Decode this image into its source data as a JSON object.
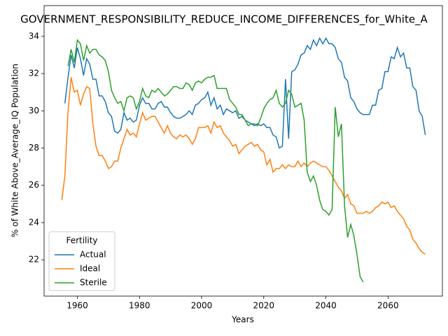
{
  "chart_data": {
    "type": "line",
    "title": "GOVERNMENT_RESPONSIBILITY_REDUCE_INCOME_DIFFERENCES_for_White_A",
    "xlabel": "Years",
    "ylabel": "% of White Above_Average_IQ Population",
    "x": [
      1955,
      1956,
      1957,
      1958,
      1959,
      1960,
      1961,
      1962,
      1963,
      1964,
      1965,
      1966,
      1967,
      1968,
      1969,
      1970,
      1971,
      1972,
      1973,
      1974,
      1975,
      1976,
      1977,
      1978,
      1979,
      1980,
      1981,
      1982,
      1983,
      1984,
      1985,
      1986,
      1987,
      1988,
      1989,
      1990,
      1991,
      1992,
      1993,
      1994,
      1995,
      1996,
      1997,
      1998,
      1999,
      2000,
      2001,
      2002,
      2003,
      2004,
      2005,
      2006,
      2007,
      2008,
      2009,
      2010,
      2011,
      2012,
      2013,
      2014,
      2015,
      2016,
      2017,
      2018,
      2019,
      2020,
      2021,
      2022,
      2023,
      2024,
      2025,
      2026,
      2027,
      2028,
      2029,
      2030,
      2031,
      2032,
      2033,
      2034,
      2035,
      2036,
      2037,
      2038,
      2039,
      2040,
      2041,
      2042,
      2043,
      2044,
      2045,
      2046,
      2047,
      2048,
      2049,
      2050,
      2051,
      2052,
      2053,
      2054,
      2055,
      2056,
      2057,
      2058,
      2059,
      2060,
      2061,
      2062,
      2063,
      2064,
      2065,
      2066,
      2067,
      2068,
      2069,
      2070,
      2071,
      2072
    ],
    "series": [
      {
        "name": "Actual",
        "color": "#1f77b4",
        "values": [
          null,
          30.4,
          31.8,
          33.0,
          32.3,
          33.4,
          32.8,
          31.9,
          32.8,
          32.5,
          31.7,
          31.7,
          30.8,
          30.8,
          30.5,
          29.9,
          29.7,
          28.9,
          28.8,
          29.0,
          29.9,
          29.5,
          29.6,
          29.4,
          29.5,
          30.3,
          30.7,
          30.4,
          30.4,
          30.1,
          30.1,
          30.4,
          30.5,
          30.2,
          30.2,
          29.9,
          29.7,
          29.6,
          29.6,
          29.7,
          29.8,
          30.0,
          29.8,
          30.3,
          30.4,
          30.6,
          30.7,
          31.0,
          30.3,
          30.7,
          30.1,
          30.3,
          29.8,
          30.1,
          30.0,
          29.9,
          30.0,
          29.6,
          29.7,
          29.5,
          29.4,
          29.3,
          29.2,
          29.3,
          29.2,
          29.3,
          29.1,
          29.1,
          28.7,
          28.6,
          28.0,
          28.1,
          31.7,
          28.5,
          32.1,
          32.2,
          32.5,
          33.0,
          33.1,
          33.5,
          33.3,
          33.8,
          33.5,
          33.9,
          33.6,
          33.9,
          33.6,
          33.6,
          33.4,
          32.8,
          32.6,
          31.8,
          31.6,
          30.7,
          30.5,
          30.1,
          29.9,
          29.8,
          29.8,
          29.8,
          30.3,
          30.3,
          31.1,
          31.2,
          32.1,
          32.1,
          32.9,
          32.8,
          33.4,
          32.9,
          33.1,
          32.3,
          32.3,
          31.3,
          31.1,
          30.0,
          29.7,
          28.7
        ]
      },
      {
        "name": "Ideal",
        "color": "#ff7f0e",
        "values": [
          25.2,
          26.5,
          30.0,
          31.8,
          31.0,
          31.1,
          30.3,
          30.9,
          31.3,
          31.2,
          29.3,
          28.1,
          27.6,
          27.6,
          27.3,
          26.9,
          27.0,
          27.3,
          27.3,
          28.0,
          28.5,
          29.0,
          28.7,
          28.8,
          28.6,
          29.3,
          29.9,
          29.5,
          29.6,
          29.7,
          29.7,
          29.4,
          29.1,
          28.8,
          29.2,
          28.8,
          28.6,
          28.5,
          28.7,
          28.6,
          28.7,
          28.5,
          28.2,
          28.5,
          29.1,
          29.1,
          29.1,
          29.2,
          28.8,
          29.4,
          29.1,
          29.2,
          28.8,
          28.6,
          28.4,
          28.1,
          28.2,
          27.7,
          27.9,
          28.1,
          28.2,
          28.3,
          28.1,
          28.2,
          27.9,
          27.8,
          27.1,
          27.4,
          26.7,
          26.9,
          26.9,
          27.1,
          26.9,
          27.1,
          27.0,
          27.0,
          27.3,
          27.0,
          27.2,
          27.0,
          27.2,
          27.3,
          27.2,
          27.1,
          27.0,
          27.0,
          26.8,
          26.5,
          26.2,
          25.9,
          25.7,
          25.3,
          25.5,
          25.0,
          24.9,
          24.5,
          24.5,
          24.5,
          24.6,
          24.5,
          24.6,
          24.8,
          24.9,
          25.1,
          25.0,
          25.1,
          24.8,
          24.9,
          24.6,
          24.4,
          24.2,
          23.8,
          23.6,
          23.1,
          22.9,
          22.6,
          22.4,
          22.3
        ]
      },
      {
        "name": "Sterile",
        "color": "#2ca02c",
        "values": [
          null,
          null,
          32.4,
          33.3,
          32.6,
          33.8,
          33.6,
          32.7,
          33.5,
          33.1,
          33.3,
          33.3,
          33.0,
          32.9,
          32.7,
          32.1,
          31.1,
          30.7,
          30.4,
          30.5,
          30.0,
          30.7,
          30.8,
          30.7,
          30.1,
          30.5,
          31.2,
          30.8,
          30.7,
          31.1,
          31.0,
          31.2,
          31.0,
          30.8,
          30.9,
          31.1,
          31.3,
          31.3,
          31.2,
          31.2,
          31.5,
          31.4,
          31.1,
          31.5,
          31.6,
          31.5,
          31.7,
          31.8,
          31.8,
          31.9,
          31.2,
          31.2,
          31.2,
          31.2,
          30.6,
          30.4,
          30.2,
          29.8,
          29.8,
          29.5,
          29.2,
          29.3,
          29.3,
          29.2,
          29.6,
          30.1,
          30.4,
          30.6,
          30.7,
          31.1,
          30.4,
          30.2,
          30.4,
          31.1,
          30.9,
          30.2,
          30.3,
          30.4,
          29.5,
          26.7,
          26.2,
          26.5,
          26.0,
          25.2,
          24.7,
          24.6,
          24.4,
          24.7,
          30.2,
          28.6,
          29.3,
          24.9,
          23.2,
          23.9,
          23.3,
          22.3,
          21.1,
          20.8,
          null,
          null,
          null,
          null,
          null,
          null,
          null,
          null,
          null,
          null,
          null,
          null,
          null,
          null,
          null,
          null,
          null,
          null,
          null,
          null
        ]
      }
    ],
    "xlim": [
      1949.3,
      2077.5
    ],
    "xticks": [
      1960,
      1980,
      2000,
      2020,
      2040,
      2060
    ],
    "ylim": [
      20.05,
      35.65
    ],
    "yticks": [
      22,
      24,
      26,
      28,
      30,
      32,
      34
    ],
    "legend": {
      "title": "Fertility",
      "loc": "lower left"
    }
  }
}
